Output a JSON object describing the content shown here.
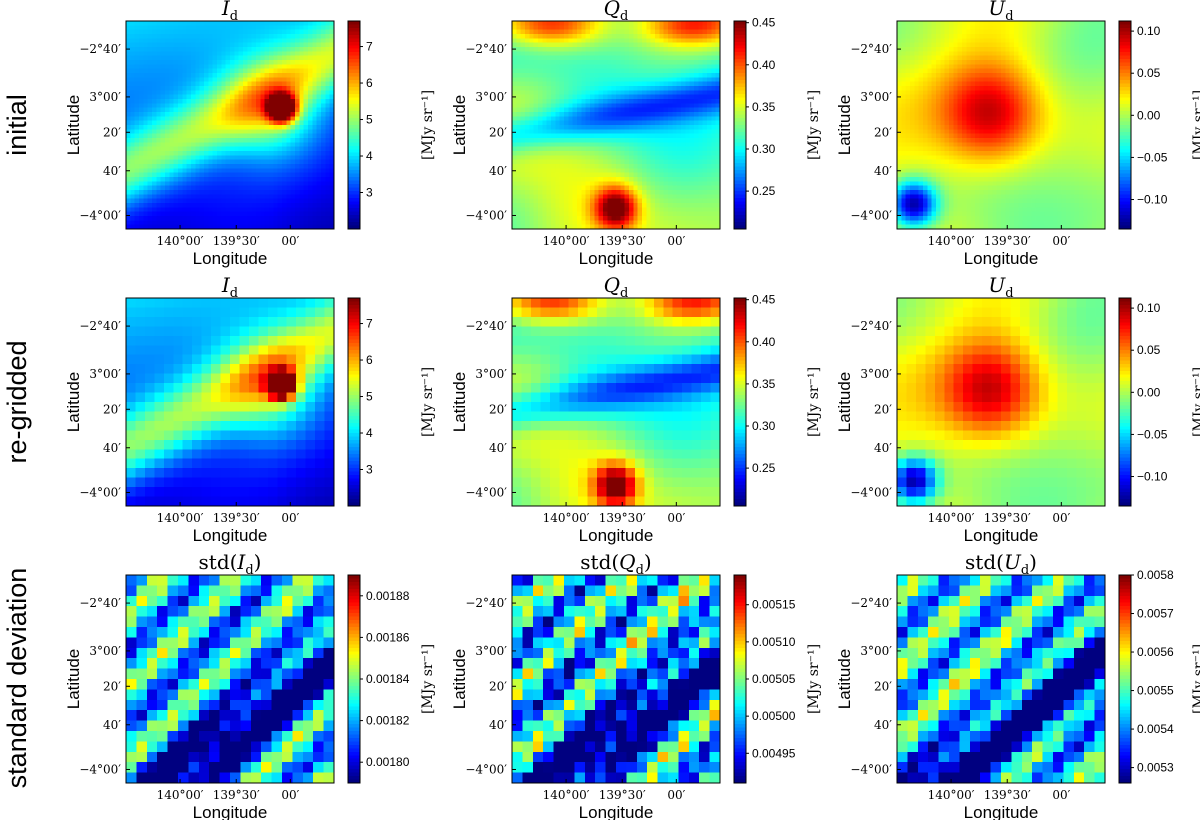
{
  "figure": {
    "row_labels": [
      "initial",
      "re-gridded",
      "standard deviation"
    ],
    "x_axis_label": "Longitude",
    "y_axis_label": "Latitude",
    "x_tick_labels": [
      "140°00′",
      "139°30′",
      "00′"
    ],
    "y_tick_labels": [
      "−2°40′",
      "3°00′",
      "20′",
      "40′",
      "−4°00′"
    ],
    "colorbar_label": "[MJy sr⁻¹]",
    "colormap": "jet"
  },
  "chart_data": [
    {
      "type": "heatmap",
      "row": "initial",
      "title": "I_d",
      "title_main": "I",
      "title_sub": "d",
      "title_pre": "",
      "title_post": "",
      "smooth": true,
      "grid": 48,
      "vmin": 2.0,
      "vmax": 7.7,
      "colorbar_ticks": [
        "3",
        "4",
        "5",
        "6",
        "7"
      ],
      "colorbar_tick_values": [
        3,
        4,
        5,
        6,
        7
      ],
      "xlabel": "Longitude",
      "ylabel": "Latitude",
      "field": "intensity",
      "seed": 3
    },
    {
      "type": "heatmap",
      "row": "initial",
      "title": "Q_d",
      "title_main": "Q",
      "title_sub": "d",
      "title_pre": "",
      "title_post": "",
      "smooth": true,
      "grid": 48,
      "vmin": 0.205,
      "vmax": 0.452,
      "colorbar_ticks": [
        "0.25",
        "0.30",
        "0.35",
        "0.40",
        "0.45"
      ],
      "colorbar_tick_values": [
        0.25,
        0.3,
        0.35,
        0.4,
        0.45
      ],
      "xlabel": "Longitude",
      "ylabel": "Latitude",
      "field": "q",
      "seed": 11
    },
    {
      "type": "heatmap",
      "row": "initial",
      "title": "U_d",
      "title_main": "U",
      "title_sub": "d",
      "title_pre": "",
      "title_post": "",
      "smooth": true,
      "grid": 48,
      "vmin": -0.135,
      "vmax": 0.112,
      "colorbar_ticks": [
        "0.10",
        "0.05",
        "0.00",
        "−0.05",
        "−0.10"
      ],
      "colorbar_tick_values": [
        0.1,
        0.05,
        0.0,
        -0.05,
        -0.1
      ],
      "xlabel": "Longitude",
      "ylabel": "Latitude",
      "field": "u",
      "seed": 17
    },
    {
      "type": "heatmap",
      "row": "re-gridded",
      "title": "I_d",
      "title_main": "I",
      "title_sub": "d",
      "title_pre": "",
      "title_post": "",
      "smooth": false,
      "grid": 22,
      "vmin": 2.0,
      "vmax": 7.7,
      "colorbar_ticks": [
        "3",
        "4",
        "5",
        "6",
        "7"
      ],
      "colorbar_tick_values": [
        3,
        4,
        5,
        6,
        7
      ],
      "xlabel": "Longitude",
      "ylabel": "Latitude",
      "field": "intensity",
      "seed": 3
    },
    {
      "type": "heatmap",
      "row": "re-gridded",
      "title": "Q_d",
      "title_main": "Q",
      "title_sub": "d",
      "title_pre": "",
      "title_post": "",
      "smooth": false,
      "grid": 22,
      "vmin": 0.205,
      "vmax": 0.452,
      "colorbar_ticks": [
        "0.25",
        "0.30",
        "0.35",
        "0.40",
        "0.45"
      ],
      "colorbar_tick_values": [
        0.25,
        0.3,
        0.35,
        0.4,
        0.45
      ],
      "xlabel": "Longitude",
      "ylabel": "Latitude",
      "field": "q",
      "seed": 11
    },
    {
      "type": "heatmap",
      "row": "re-gridded",
      "title": "U_d",
      "title_main": "U",
      "title_sub": "d",
      "title_pre": "",
      "title_post": "",
      "smooth": false,
      "grid": 22,
      "vmin": -0.135,
      "vmax": 0.112,
      "colorbar_ticks": [
        "0.10",
        "0.05",
        "0.00",
        "−0.05",
        "−0.10"
      ],
      "colorbar_tick_values": [
        0.1,
        0.05,
        0.0,
        -0.05,
        -0.1
      ],
      "xlabel": "Longitude",
      "ylabel": "Latitude",
      "field": "u",
      "seed": 17
    },
    {
      "type": "heatmap",
      "row": "standard deviation",
      "title": "std(I_d)",
      "title_main": "I",
      "title_sub": "d",
      "title_pre": "std(",
      "title_post": ")",
      "smooth": false,
      "grid": 20,
      "vmin": 0.00179,
      "vmax": 0.00189,
      "colorbar_ticks": [
        "0.00188",
        "0.00186",
        "0.00184",
        "0.00182",
        "0.00180"
      ],
      "colorbar_tick_values": [
        0.00188,
        0.00186,
        0.00184,
        0.00182,
        0.0018
      ],
      "xlabel": "Longitude",
      "ylabel": "Latitude",
      "field": "std_i",
      "seed": 23
    },
    {
      "type": "heatmap",
      "row": "standard deviation",
      "title": "std(Q_d)",
      "title_main": "Q",
      "title_sub": "d",
      "title_pre": "std(",
      "title_post": ")",
      "smooth": false,
      "grid": 20,
      "vmin": 0.00491,
      "vmax": 0.00519,
      "colorbar_ticks": [
        "0.00515",
        "0.00510",
        "0.00505",
        "0.00500",
        "0.00495"
      ],
      "colorbar_tick_values": [
        0.00515,
        0.0051,
        0.00505,
        0.005,
        0.00495
      ],
      "xlabel": "Longitude",
      "ylabel": "Latitude",
      "field": "std_q",
      "seed": 29
    },
    {
      "type": "heatmap",
      "row": "standard deviation",
      "title": "std(U_d)",
      "title_main": "U",
      "title_sub": "d",
      "title_pre": "std(",
      "title_post": ")",
      "smooth": false,
      "grid": 20,
      "vmin": 0.00526,
      "vmax": 0.0058,
      "colorbar_ticks": [
        "0.0058",
        "0.0057",
        "0.0056",
        "0.0055",
        "0.0054",
        "0.0053"
      ],
      "colorbar_tick_values": [
        0.0058,
        0.0057,
        0.0056,
        0.0055,
        0.0054,
        0.0053
      ],
      "xlabel": "Longitude",
      "ylabel": "Latitude",
      "field": "std_u",
      "seed": 31
    }
  ]
}
